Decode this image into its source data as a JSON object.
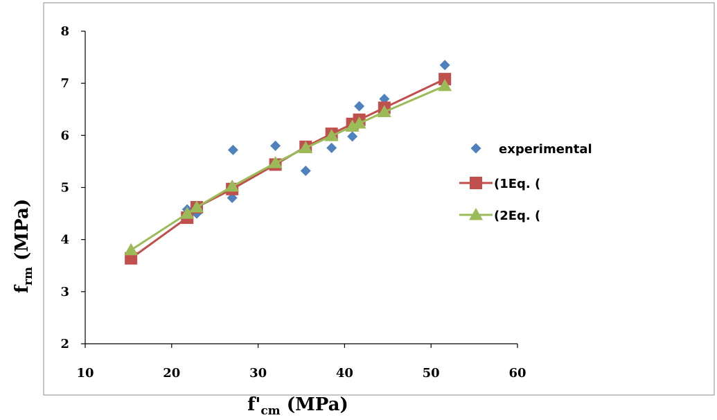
{
  "chart_data": {
    "type": "scatter",
    "xlabel_main": "f'",
    "xlabel_sub": "cm",
    "xlabel_unit": " (MPa)",
    "ylabel_main": "f",
    "ylabel_sub": "rm",
    "ylabel_unit": " (MPa)",
    "xlim": [
      10,
      60
    ],
    "ylim": [
      2,
      8
    ],
    "xticks": [
      10,
      20,
      30,
      40,
      50,
      60
    ],
    "yticks": [
      2,
      3,
      4,
      5,
      6,
      7,
      8
    ],
    "legend_position": "right",
    "grid": false,
    "series": [
      {
        "name": "experimental",
        "kind": "markers",
        "marker": "diamond",
        "color": "#4F81BD",
        "points": [
          [
            21.8,
            4.58
          ],
          [
            22.9,
            4.5
          ],
          [
            27.0,
            4.8
          ],
          [
            27.1,
            5.72
          ],
          [
            32.0,
            5.8
          ],
          [
            35.5,
            5.32
          ],
          [
            38.5,
            5.76
          ],
          [
            40.9,
            5.98
          ],
          [
            41.7,
            6.56
          ],
          [
            44.6,
            6.7
          ],
          [
            51.6,
            7.35
          ]
        ]
      },
      {
        "name": "(1Eq. (",
        "kind": "line-markers",
        "marker": "square",
        "color": "#C0504D",
        "points": [
          [
            15.3,
            3.64
          ],
          [
            21.8,
            4.42
          ],
          [
            22.9,
            4.62
          ],
          [
            27.0,
            4.97
          ],
          [
            32.0,
            5.44
          ],
          [
            35.5,
            5.78
          ],
          [
            38.5,
            6.03
          ],
          [
            40.9,
            6.22
          ],
          [
            41.7,
            6.3
          ],
          [
            44.6,
            6.53
          ],
          [
            51.6,
            7.08
          ]
        ]
      },
      {
        "name": "(2Eq. (",
        "kind": "line-markers",
        "marker": "triangle",
        "color": "#9BBB59",
        "points": [
          [
            15.3,
            3.8
          ],
          [
            21.8,
            4.5
          ],
          [
            22.9,
            4.62
          ],
          [
            27.0,
            5.02
          ],
          [
            32.0,
            5.47
          ],
          [
            35.5,
            5.76
          ],
          [
            38.5,
            5.99
          ],
          [
            40.9,
            6.17
          ],
          [
            41.7,
            6.23
          ],
          [
            44.6,
            6.45
          ],
          [
            51.6,
            6.95
          ]
        ]
      }
    ]
  }
}
